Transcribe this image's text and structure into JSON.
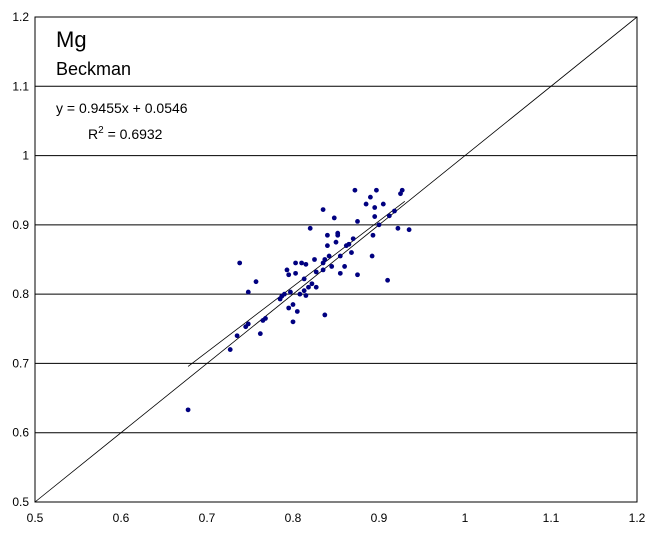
{
  "chart_data": {
    "type": "scatter",
    "title": "Mg",
    "subtitle": "Beckman",
    "equation": "y = 0.9455x + 0.0546",
    "r_squared_label": "R",
    "r_squared_sup": "2",
    "r_squared_value": " = 0.6932",
    "xlim": [
      0.5,
      1.2
    ],
    "ylim": [
      0.5,
      1.2
    ],
    "x_ticks": [
      0.5,
      0.6,
      0.7,
      0.8,
      0.9,
      1,
      1.1,
      1.2
    ],
    "y_ticks": [
      0.5,
      0.6,
      0.7,
      0.8,
      0.9,
      1,
      1.1,
      1.2
    ],
    "x_tick_labels": [
      "0.5",
      "0.6",
      "0.7",
      "0.8",
      "0.9",
      "1",
      "1.1",
      "1.2"
    ],
    "y_tick_labels": [
      "0.5",
      "0.6",
      "0.7",
      "0.8",
      "0.9",
      "1",
      "1.1",
      "1.2"
    ],
    "grid": "horizontal",
    "identity_line": [
      [
        0.5,
        0.5
      ],
      [
        1.2,
        1.2
      ]
    ],
    "trendline": {
      "slope": 0.9455,
      "intercept": 0.0546,
      "x_range": [
        0.678,
        0.93
      ]
    },
    "point_color": "#000080",
    "x": [
      0.678,
      0.727,
      0.735,
      0.738,
      0.745,
      0.748,
      0.748,
      0.757,
      0.762,
      0.765,
      0.768,
      0.785,
      0.787,
      0.79,
      0.793,
      0.795,
      0.795,
      0.797,
      0.8,
      0.8,
      0.803,
      0.803,
      0.805,
      0.808,
      0.81,
      0.813,
      0.813,
      0.815,
      0.815,
      0.818,
      0.82,
      0.822,
      0.825,
      0.827,
      0.827,
      0.835,
      0.835,
      0.835,
      0.837,
      0.837,
      0.84,
      0.84,
      0.842,
      0.845,
      0.848,
      0.85,
      0.852,
      0.852,
      0.855,
      0.855,
      0.86,
      0.862,
      0.865,
      0.868,
      0.87,
      0.872,
      0.875,
      0.875,
      0.885,
      0.89,
      0.892,
      0.893,
      0.895,
      0.895,
      0.897,
      0.9,
      0.905,
      0.91,
      0.912,
      0.918,
      0.922,
      0.925,
      0.927,
      0.935
    ],
    "y": [
      0.633,
      0.72,
      0.74,
      0.845,
      0.753,
      0.757,
      0.803,
      0.818,
      0.743,
      0.762,
      0.765,
      0.793,
      0.797,
      0.8,
      0.835,
      0.828,
      0.78,
      0.803,
      0.76,
      0.785,
      0.83,
      0.845,
      0.775,
      0.8,
      0.845,
      0.805,
      0.822,
      0.843,
      0.798,
      0.81,
      0.895,
      0.815,
      0.85,
      0.832,
      0.81,
      0.922,
      0.845,
      0.835,
      0.85,
      0.77,
      0.87,
      0.885,
      0.855,
      0.84,
      0.91,
      0.875,
      0.885,
      0.888,
      0.83,
      0.855,
      0.84,
      0.87,
      0.872,
      0.86,
      0.88,
      0.95,
      0.828,
      0.905,
      0.93,
      0.94,
      0.855,
      0.885,
      0.912,
      0.925,
      0.95,
      0.9,
      0.93,
      0.82,
      0.913,
      0.92,
      0.895,
      0.945,
      0.95,
      0.893
    ]
  }
}
